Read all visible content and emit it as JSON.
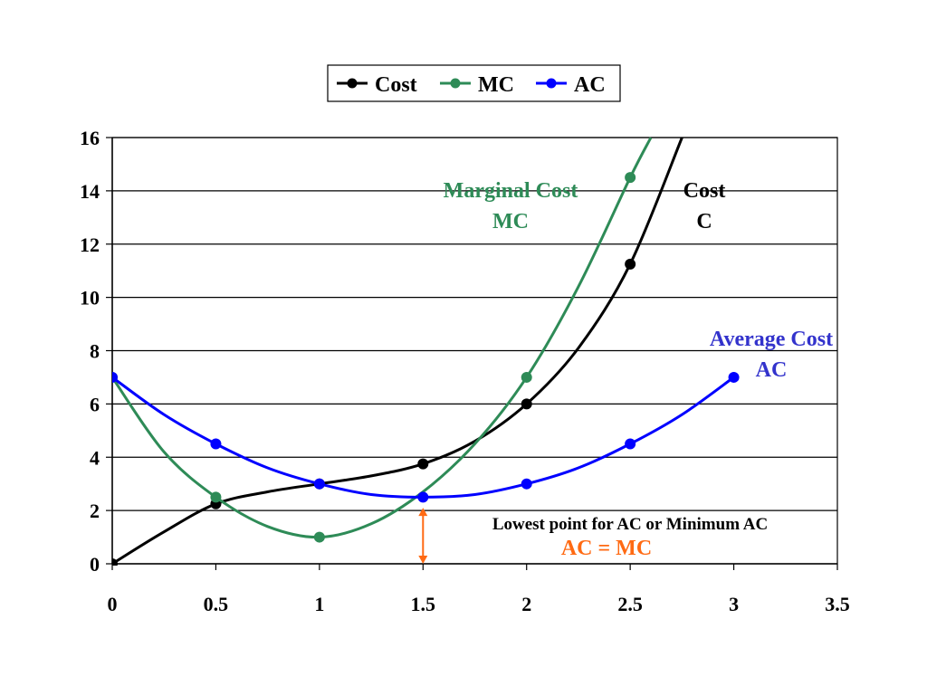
{
  "chart_data": {
    "type": "line",
    "x_range": [
      0,
      3.5
    ],
    "y_range": [
      0,
      16
    ],
    "x_ticks": [
      "0",
      "0.5",
      "1",
      "1.5",
      "2",
      "2.5",
      "3",
      "3.5"
    ],
    "y_ticks": [
      "0",
      "2",
      "4",
      "6",
      "8",
      "10",
      "12",
      "14",
      "16"
    ],
    "grid": "horizontal",
    "legend_position": "top-center",
    "series": [
      {
        "name": "Cost",
        "color": "#000000",
        "points": [
          [
            0,
            0
          ],
          [
            0.5,
            2.25
          ],
          [
            1,
            3
          ],
          [
            1.5,
            3.75
          ],
          [
            2,
            6
          ],
          [
            2.5,
            11.25
          ]
        ],
        "curve": [
          [
            0,
            0
          ],
          [
            0.25,
            1.2
          ],
          [
            0.5,
            2.25
          ],
          [
            0.75,
            2.7
          ],
          [
            1,
            3
          ],
          [
            1.25,
            3.3
          ],
          [
            1.5,
            3.75
          ],
          [
            1.75,
            4.6
          ],
          [
            2,
            6
          ],
          [
            2.25,
            8.1
          ],
          [
            2.5,
            11.25
          ],
          [
            2.75,
            16.0
          ]
        ]
      },
      {
        "name": "MC",
        "color": "#2e8b57",
        "points": [
          [
            0,
            7
          ],
          [
            0.5,
            2.5
          ],
          [
            1,
            1
          ],
          [
            2,
            7
          ],
          [
            2.5,
            14.5
          ]
        ],
        "curve": [
          [
            0,
            7
          ],
          [
            0.25,
            4.2
          ],
          [
            0.5,
            2.5
          ],
          [
            0.75,
            1.4
          ],
          [
            1,
            1
          ],
          [
            1.25,
            1.5
          ],
          [
            1.5,
            2.7
          ],
          [
            1.75,
            4.5
          ],
          [
            2,
            7
          ],
          [
            2.25,
            10.4
          ],
          [
            2.5,
            14.5
          ],
          [
            2.6,
            16.0
          ]
        ]
      },
      {
        "name": "AC",
        "color": "#0000ff",
        "points": [
          [
            0,
            7
          ],
          [
            0.5,
            4.5
          ],
          [
            1,
            3
          ],
          [
            1.5,
            2.5
          ],
          [
            2,
            3
          ],
          [
            2.5,
            4.5
          ],
          [
            3,
            7
          ]
        ],
        "curve": [
          [
            0,
            7
          ],
          [
            0.25,
            5.6
          ],
          [
            0.5,
            4.5
          ],
          [
            0.75,
            3.6
          ],
          [
            1,
            3
          ],
          [
            1.25,
            2.6
          ],
          [
            1.5,
            2.5
          ],
          [
            1.75,
            2.6
          ],
          [
            2,
            3
          ],
          [
            2.25,
            3.6
          ],
          [
            2.5,
            4.5
          ],
          [
            2.75,
            5.6
          ],
          [
            3,
            7
          ]
        ]
      }
    ],
    "annotations": {
      "mc_label": {
        "line1": "Marginal Cost",
        "line2": "MC",
        "color": "#2e8b57"
      },
      "cost_label": {
        "line1": "Cost",
        "line2": "C",
        "color": "#000000"
      },
      "ac_label": {
        "line1": "Average Cost",
        "line2": "AC",
        "color": "#3333cc"
      },
      "min_note": {
        "line1": "Lowest point for AC or Minimum AC",
        "line2": "AC = MC",
        "line2_color": "#ff6a13",
        "arrow_x": 1.5,
        "arrow_y": [
          0,
          2.1
        ]
      }
    }
  }
}
